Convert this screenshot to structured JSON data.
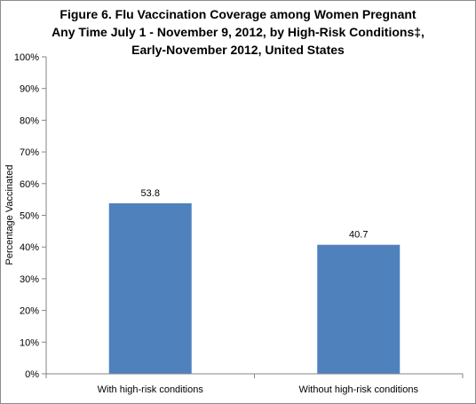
{
  "chart_data": {
    "type": "bar",
    "title_lines": [
      "Figure 6. Flu Vaccination Coverage among Women Pregnant",
      "Any Time July 1 - November 9, 2012, by High-Risk Conditions‡,",
      "Early-November 2012, United States"
    ],
    "xlabel": "",
    "ylabel": "Percentage Vaccinated",
    "categories": [
      "With high-risk conditions",
      "Without high-risk conditions"
    ],
    "values": [
      53.8,
      40.7
    ],
    "data_labels": [
      "53.8",
      "40.7"
    ],
    "ylim": [
      0,
      100
    ],
    "yticks": [
      "0%",
      "10%",
      "20%",
      "30%",
      "40%",
      "50%",
      "60%",
      "70%",
      "80%",
      "90%",
      "100%"
    ],
    "bar_color": "#4f81bd",
    "grid": false,
    "legend": "none"
  }
}
